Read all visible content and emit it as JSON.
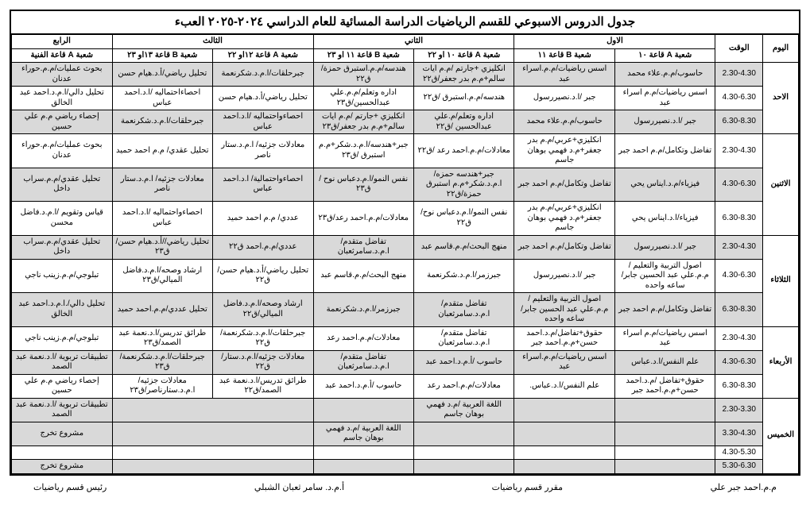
{
  "title": "جدول الدروس الاسبوعي للقسم الرياضيات الدراسة المسائية  للعام الدراسي  ٢٠٢٤-٢٠٢٥ العبء",
  "header": {
    "day": "اليوم",
    "time": "الوقت",
    "levels": [
      "الاول",
      "الثاني",
      "الثالث",
      "الرابع"
    ],
    "rooms": [
      "شعبة A قاعة ١٠",
      "شعبة B قاعة ١١",
      "شعبة A قاعة ١٠ او ٢٢",
      "شعبة B قاعة ١١ او ٢٣",
      "شعبة A قاعة ١٢او ٢٢",
      "شعبة B قاعة ١٣او ٢٣",
      "شعبة A قاعة الفنية"
    ]
  },
  "days": [
    {
      "name": "الاحد",
      "rows": [
        {
          "time": "2.30-4.30",
          "shaded": true,
          "cells": [
            "حاسوب/م.م.علاء محمد",
            "اسس رياضيات/م.م.اسراء عبد",
            "انكليزي +جارتم /م.م ايات سالم+م.م بدر جعفر/ق٢٢",
            "هندسه/م.م.استبرق حمزة/ق٢٢",
            "جبرحلقات/ا.م.د.شكرنعمة",
            "تحليل رياضي/أ.د.هيام حسن",
            "بحوث عمليات/م.م.حوراء عدنان"
          ]
        },
        {
          "time": "4.30-6.30",
          "shaded": false,
          "cells": [
            "اسس رياضيات/م.م اسراء عبد",
            "جبر /ا.د.نصيررسول",
            "هندسه/م.م.استبرق /ق٢٢",
            "اداره وتعلم/م.م.علي عبدالحسين/ق٢٣",
            "تحليل رياضي/أ.د.هيام حسن",
            "احصاءاحتماليه /ا.د.احمد عباس",
            "تحليل دالي/ا.م.د.احمد عبد الخالق"
          ]
        },
        {
          "time": "6.30-8.30",
          "shaded": true,
          "cells": [
            "جبر /ا.د.نصيررسول",
            "حاسوب/م.م.علاء محمد",
            "اداره وتعلم/م.علي عبدالحسين /ق٢٢",
            "انكليزي +جارتم /م.م ايات سالم+م.م بدر جعفر/ق٢٣",
            "احصاءواحتماليه /ا.د.احمد عباس",
            "جبرحلقات/ا.م.د.شكرنعمة",
            "إحصاء رياضي  م.م علي حسين"
          ]
        }
      ]
    },
    {
      "name": "الاثنين",
      "rows": [
        {
          "time": "2.30-4.30",
          "shaded": false,
          "cells": [
            "تفاضل وتكامل/م.م احمد جبر",
            "انكليزي+عربي/م.م بدر جعفر+م.د فهمي بوهان جاسم",
            "معادلات/م.م.احمد رعد /ق٢٢",
            "جبر+هندسه/ا.م.د.شكر+م.م استبرق /ق٢٣",
            "معادلات جزئيه/ ا.م.د.ستار ناصر",
            "تحليل عقدي/ م.م احمد حميد",
            "بحوث عمليات/م.م.حوراء عدنان"
          ]
        },
        {
          "time": "4.30-6.30",
          "shaded": true,
          "cells": [
            "فيزياء/م.د.ايناس يحي",
            "تفاضل وتكامل/م.م احمد جبر",
            "جبر+هندسه حمزه/ا.م.د.شكر+م.م استبرق حمزة/ق٢٢",
            "نفس النمو/ا.م.دعباس نوح /ق٢٣",
            "احصاءواحتمالية/ ا.د.احمد عباس",
            "معادلات جزئيه/ ا.م.د.ستار ناصر",
            "تحليل عقدي/م.م.سراب داخل"
          ]
        },
        {
          "time": "6.30-8.30",
          "shaded": false,
          "cells": [
            "فيزياء/ا.د.ايناس يحي",
            "انكليزي+عربي/م.م بدر جعفر+م.د فهمي بوهان جاسم",
            "نفس النمو/ا.م.دعباس نوح/ق٢٢",
            "معادلات/م.م.احمد رعد/ق٢٣",
            "عددي/ م.م احمد حميد",
            "احصاءواحتماليه /ا.د.احمد عباس",
            "قياس وتقويم /ا.م.د.فاضل محسن"
          ]
        }
      ]
    },
    {
      "name": "الثلاثاء",
      "rows": [
        {
          "time": "2.30-4.30",
          "shaded": true,
          "cells": [
            "جبر /ا.د.نصيررسول",
            "تفاضل وتكامل/م.م احمد جبر",
            "منهج البحث/م.م.قاسم عبد",
            "تفاضل متقدم/ا.م.د.سامرثعبان",
            "عددي/م.م.احمد ق٢٢",
            "تحليل رياضي//أ.د.هيام حسن/ق٢٣",
            "تحليل عقدي/م.م.سراب داخل"
          ]
        },
        {
          "time": "4.30-6.30",
          "shaded": false,
          "cells": [
            "اصول التربية والتعليم /م.م.علي عبد الحسين جابر/ساعه واحده",
            "جبر /ا.د.نصيررسول",
            "جبرزمر/ا.م.د.شكرنعمة",
            "منهج البحث/م.م.قاسم عبد",
            "تحليل رياضي/أ.د.هيام حسن/ق٢٢",
            "ارشاد وصحه/ا.م.د.فاضل الميالي/ق٢٣",
            "تبلوجي/م.م.زينب ناجي"
          ]
        },
        {
          "time": "6.30-8.30",
          "shaded": true,
          "cells": [
            "تفاضل وتكامل/م.م احمد جبر",
            "اصول التربية والتعليم /م.م.علي عبد الحسين جابر/ساعه واحده",
            "تفاضل متقدم/ا.م.د.سامرثعبان",
            "جبرزمر/ا.م.د.شكرنعمة",
            "ارشاد وصحه/ا.م.د.فاضل الميالي/ق٢٢",
            "تحليل عددي/م.م.احمد حميد",
            "تحليل دالي/.ا.م.د.احمد عبد الخالق"
          ]
        }
      ]
    },
    {
      "name": "الأربعاء",
      "rows": [
        {
          "time": "2.30-4.30",
          "shaded": false,
          "cells": [
            "اسس رياضيات/م.م اسراء عبد",
            "حقوق+تفاضل/م.د.احمد حسن+م.م.احمد جبر",
            "تفاضل متقدم/ا.م.د.سامرثعبان",
            "معادلات/م.م.احمد رعد",
            "جبرحلقات/ا.م.د.شكرنعمة/ق٢٢",
            "طرائق تدريس/ا.د.نعمة عبد الصمد/ق٢٣",
            "تبلوجي/م.م.زينب ناجي"
          ]
        },
        {
          "time": "4.30-6.30",
          "shaded": true,
          "cells": [
            "علم النفس/ا.د.عباس",
            "اسس رياضيات/م.م.اسراء عبد",
            "حاسوب /أ.م.د.احمد عبد",
            "تفاضل متقدم/ا.م.د.سامرثعبان",
            "معادلات جزئيه/ا.م.د.ستار/ق٢٢",
            "جبرحلقات/ا.م.د.شكرنعمة/ق٢٣",
            "تطبيقات تربوية /ا.د.نعمة عبد الصمد"
          ]
        },
        {
          "time": "6.30-8.30",
          "shaded": false,
          "cells": [
            "حقوق+تفاضل /م.د.احمد حسن+م.م.احمد جبر",
            "علم النفس/ا.د.عباس.",
            "معادلات/م.م.احمد رعد",
            "حاسوب /أ.م.د.احمد عبد",
            "طرائق تدريس/ا.د.نعمة عبد الصمد/ق٢٢",
            "معادلات جزئيه/ا.م.د.ستارناصر/ق٢٣",
            "إحصاء رياضي  م.م علي حسين"
          ]
        }
      ]
    }
  ],
  "thursday": {
    "name": "الخميس",
    "rows": [
      {
        "time": "2.30-3.30",
        "shaded": true,
        "c0": "",
        "c1": "",
        "c2": "اللغة العربية /م.د فهمي بوهان جاسم",
        "c3": "",
        "c45": "",
        "c6": "تطبيقات تربوية /ا.د.نعمة عبد الصمد"
      },
      {
        "time": "3.30-4.30",
        "shaded": true,
        "c0": "",
        "c1": "",
        "c2": "",
        "c3": "اللغة العربية /م.د فهمي بوهان جاسم",
        "c45": "",
        "c6": "مشروع تخرج"
      },
      {
        "time": "4.30-5.30",
        "shaded": false,
        "c0": "",
        "c1": "",
        "c2": "",
        "c3": "",
        "c45": "",
        "c6": ""
      },
      {
        "time": "5.30-6.30",
        "shaded": true,
        "c0": "",
        "c1": "",
        "c2": "",
        "c3": "",
        "c45": "",
        "c6": "مشروع تخرج"
      }
    ]
  },
  "footer": {
    "a": "م.م.احمد جبر علي",
    "b": "مقرر قسم رياضيات",
    "c": "أ.م.د. سامر ثعبان الشبلي",
    "d": "رئيس قسم رياضيات"
  }
}
